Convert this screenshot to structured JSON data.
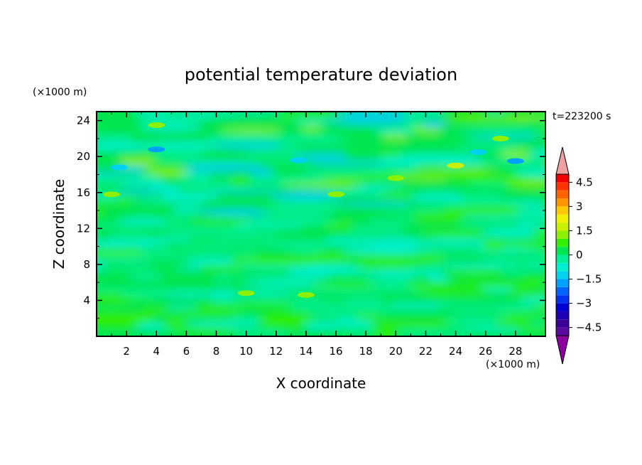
{
  "chart_data": {
    "type": "heatmap",
    "title": "potential temperature deviation",
    "xlabel": "X coordinate",
    "ylabel": "Z coordinate",
    "x_unit": "(×1000 m)",
    "y_unit": "(×1000 m)",
    "time_label": "t=223200 s",
    "xlim": [
      0,
      30
    ],
    "ylim": [
      0,
      25
    ],
    "x_ticks": [
      2,
      4,
      6,
      8,
      10,
      12,
      14,
      16,
      18,
      20,
      22,
      24,
      26,
      28
    ],
    "y_ticks": [
      4,
      8,
      12,
      16,
      20,
      24
    ],
    "colorbar": {
      "levels": [
        -5,
        -4.5,
        -4,
        -3.5,
        -3,
        -2.5,
        -2,
        -1.5,
        -1,
        -0.5,
        0,
        0.5,
        1,
        1.5,
        2,
        2.5,
        3,
        3.5,
        4,
        4.5,
        5
      ],
      "tick_labels": [
        "4.5",
        "3",
        "1.5",
        "0",
        "−1.5",
        "−3",
        "−4.5"
      ],
      "tick_values": [
        4.5,
        3,
        1.5,
        0,
        -1.5,
        -3,
        -4.5
      ],
      "colors": [
        "#5a0aa0",
        "#3c0096",
        "#1e00b4",
        "#0000d2",
        "#0032f0",
        "#0064ff",
        "#00a0ff",
        "#00d2f0",
        "#00f0d2",
        "#00f096",
        "#00e650",
        "#32f000",
        "#8cf000",
        "#c8f000",
        "#f0f000",
        "#ffc800",
        "#ff9600",
        "#ff6400",
        "#ff3200",
        "#f00000"
      ],
      "over_color": "#f0a0a0",
      "under_color": "#8c00a0"
    },
    "features": [
      {
        "x": 4,
        "z": 20.8,
        "v": -1.6
      },
      {
        "x": 13.5,
        "z": 19.6,
        "v": -1.5
      },
      {
        "x": 28,
        "z": 19.5,
        "v": -1.7
      },
      {
        "x": 25.5,
        "z": 20.5,
        "v": -1.2
      },
      {
        "x": 1.5,
        "z": 18.8,
        "v": -1.2
      },
      {
        "x": 4,
        "z": 23.5,
        "v": 1.2
      },
      {
        "x": 24,
        "z": 19,
        "v": 1.5
      },
      {
        "x": 20,
        "z": 17.6,
        "v": 1.3
      },
      {
        "x": 16,
        "z": 15.8,
        "v": 1.0
      },
      {
        "x": 1,
        "z": 15.8,
        "v": 1.0
      },
      {
        "x": 27,
        "z": 22,
        "v": 1.2
      },
      {
        "x": 14,
        "z": 4.6,
        "v": 1.4
      },
      {
        "x": 10,
        "z": 4.8,
        "v": 1.1
      }
    ]
  }
}
